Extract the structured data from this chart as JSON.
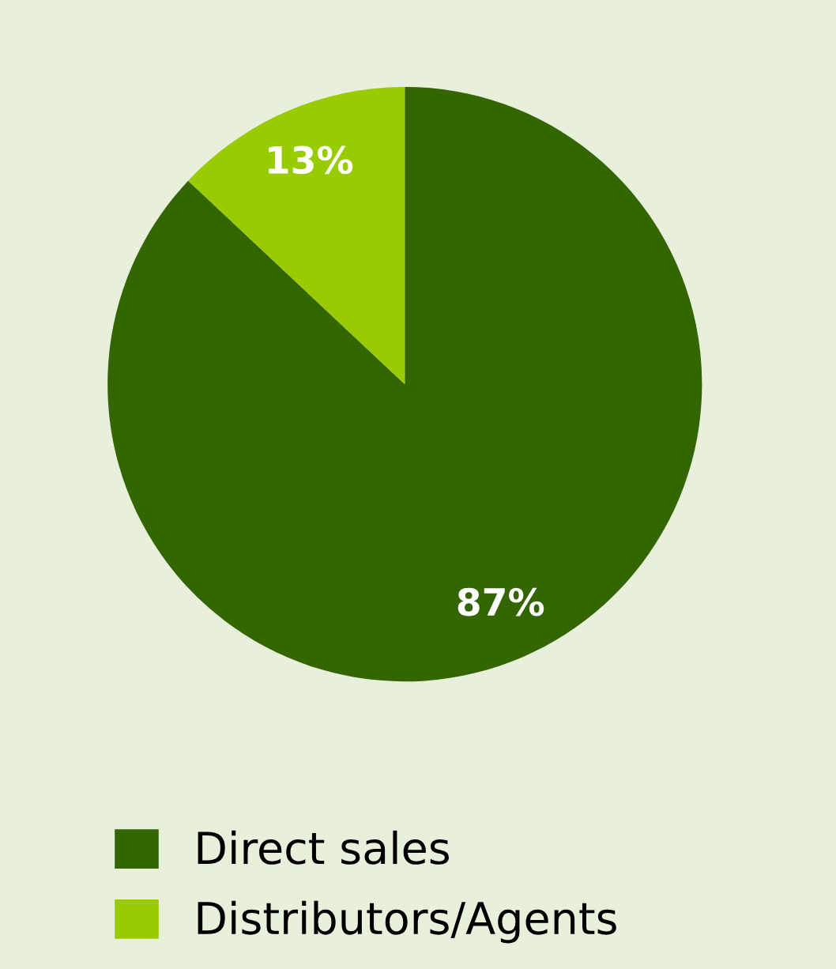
{
  "chart_data": {
    "type": "pie",
    "categories": [
      "Direct sales",
      "Distributors/Agents"
    ],
    "values": [
      87,
      13
    ],
    "colors": [
      "#336600",
      "#99cc00"
    ],
    "value_labels": [
      "87%",
      "13%"
    ],
    "legend": "bottom"
  }
}
